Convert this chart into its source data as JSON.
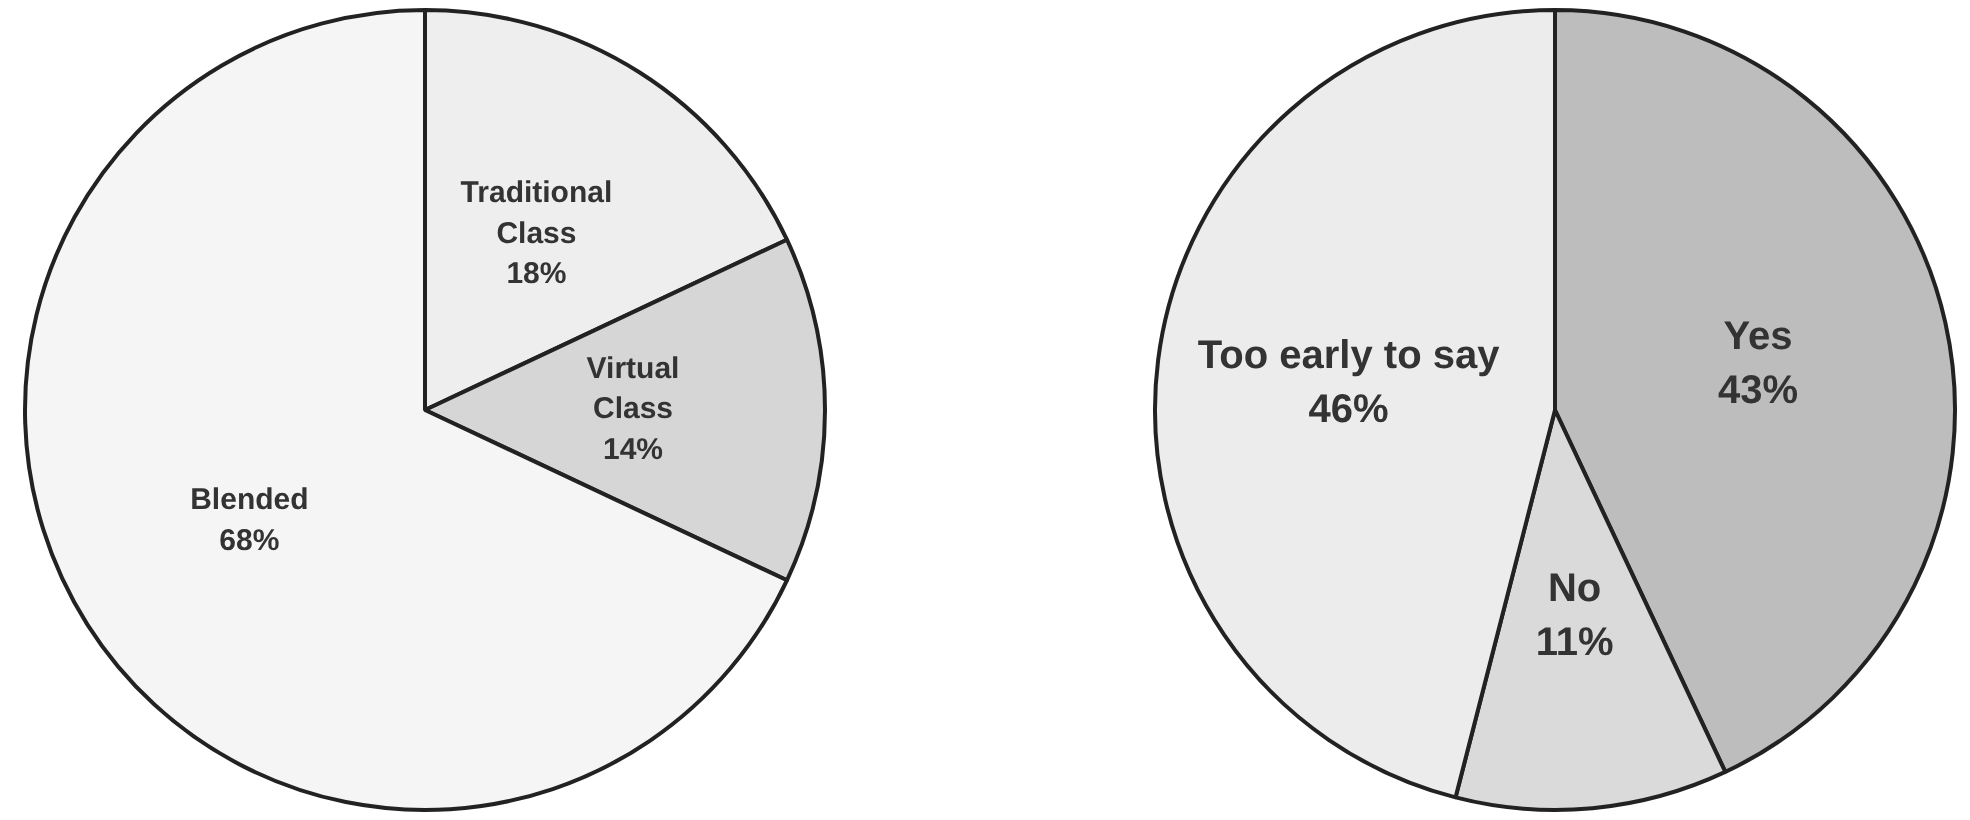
{
  "chart_data": [
    {
      "type": "pie",
      "categories": [
        "Traditional Class",
        "Virtual Class",
        "Blended"
      ],
      "values": [
        18,
        14,
        68
      ],
      "value_labels": [
        "18%",
        "14%",
        "68%"
      ],
      "colors": [
        "#eeeeee",
        "#d6d6d6",
        "#f5f5f5"
      ],
      "legend": false
    },
    {
      "type": "pie",
      "categories": [
        "Yes",
        "No",
        "Too early to say"
      ],
      "values": [
        43,
        11,
        46
      ],
      "value_labels": [
        "43%",
        "11%",
        "46%"
      ],
      "colors": [
        "#bdbdbd",
        "#dadada",
        "#ececec"
      ],
      "legend": false
    }
  ]
}
